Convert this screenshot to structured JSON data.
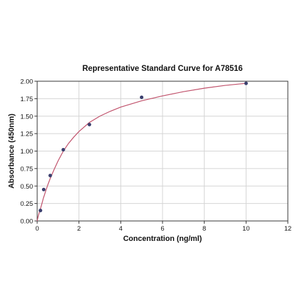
{
  "chart_data": {
    "type": "scatter",
    "title": "Representative Standard Curve for A78516",
    "xlabel": "Concentration (ng/ml)",
    "ylabel": "Absorbance (450nm)",
    "xlim": [
      0,
      12
    ],
    "ylim": [
      0,
      2.0
    ],
    "x_ticks": [
      "0",
      "2",
      "4",
      "6",
      "8",
      "10",
      "12"
    ],
    "y_ticks": [
      "0.00",
      "0.25",
      "0.50",
      "0.75",
      "1.00",
      "1.25",
      "1.50",
      "1.75",
      "2.00"
    ],
    "grid": true,
    "series": [
      {
        "points": [
          {
            "x": 0.156,
            "y": 0.15
          },
          {
            "x": 0.3125,
            "y": 0.45
          },
          {
            "x": 0.625,
            "y": 0.65
          },
          {
            "x": 1.25,
            "y": 1.02
          },
          {
            "x": 2.5,
            "y": 1.38
          },
          {
            "x": 5.0,
            "y": 1.77
          },
          {
            "x": 10.0,
            "y": 1.97
          }
        ],
        "marker_color": "#3a3f6e"
      }
    ],
    "fit_curve": {
      "color": "#c0506a",
      "x": [
        0,
        0.05,
        0.1,
        0.15,
        0.2,
        0.3,
        0.4,
        0.5,
        0.6,
        0.8,
        1.0,
        1.25,
        1.5,
        1.75,
        2.0,
        2.5,
        3.0,
        3.5,
        4.0,
        5.0,
        6.0,
        7.0,
        8.0,
        9.0,
        10.0
      ],
      "y": [
        0.0,
        0.07,
        0.12,
        0.17,
        0.22,
        0.33,
        0.42,
        0.51,
        0.59,
        0.73,
        0.86,
        1.0,
        1.11,
        1.2,
        1.28,
        1.41,
        1.5,
        1.57,
        1.63,
        1.72,
        1.79,
        1.85,
        1.9,
        1.94,
        1.97
      ]
    }
  }
}
